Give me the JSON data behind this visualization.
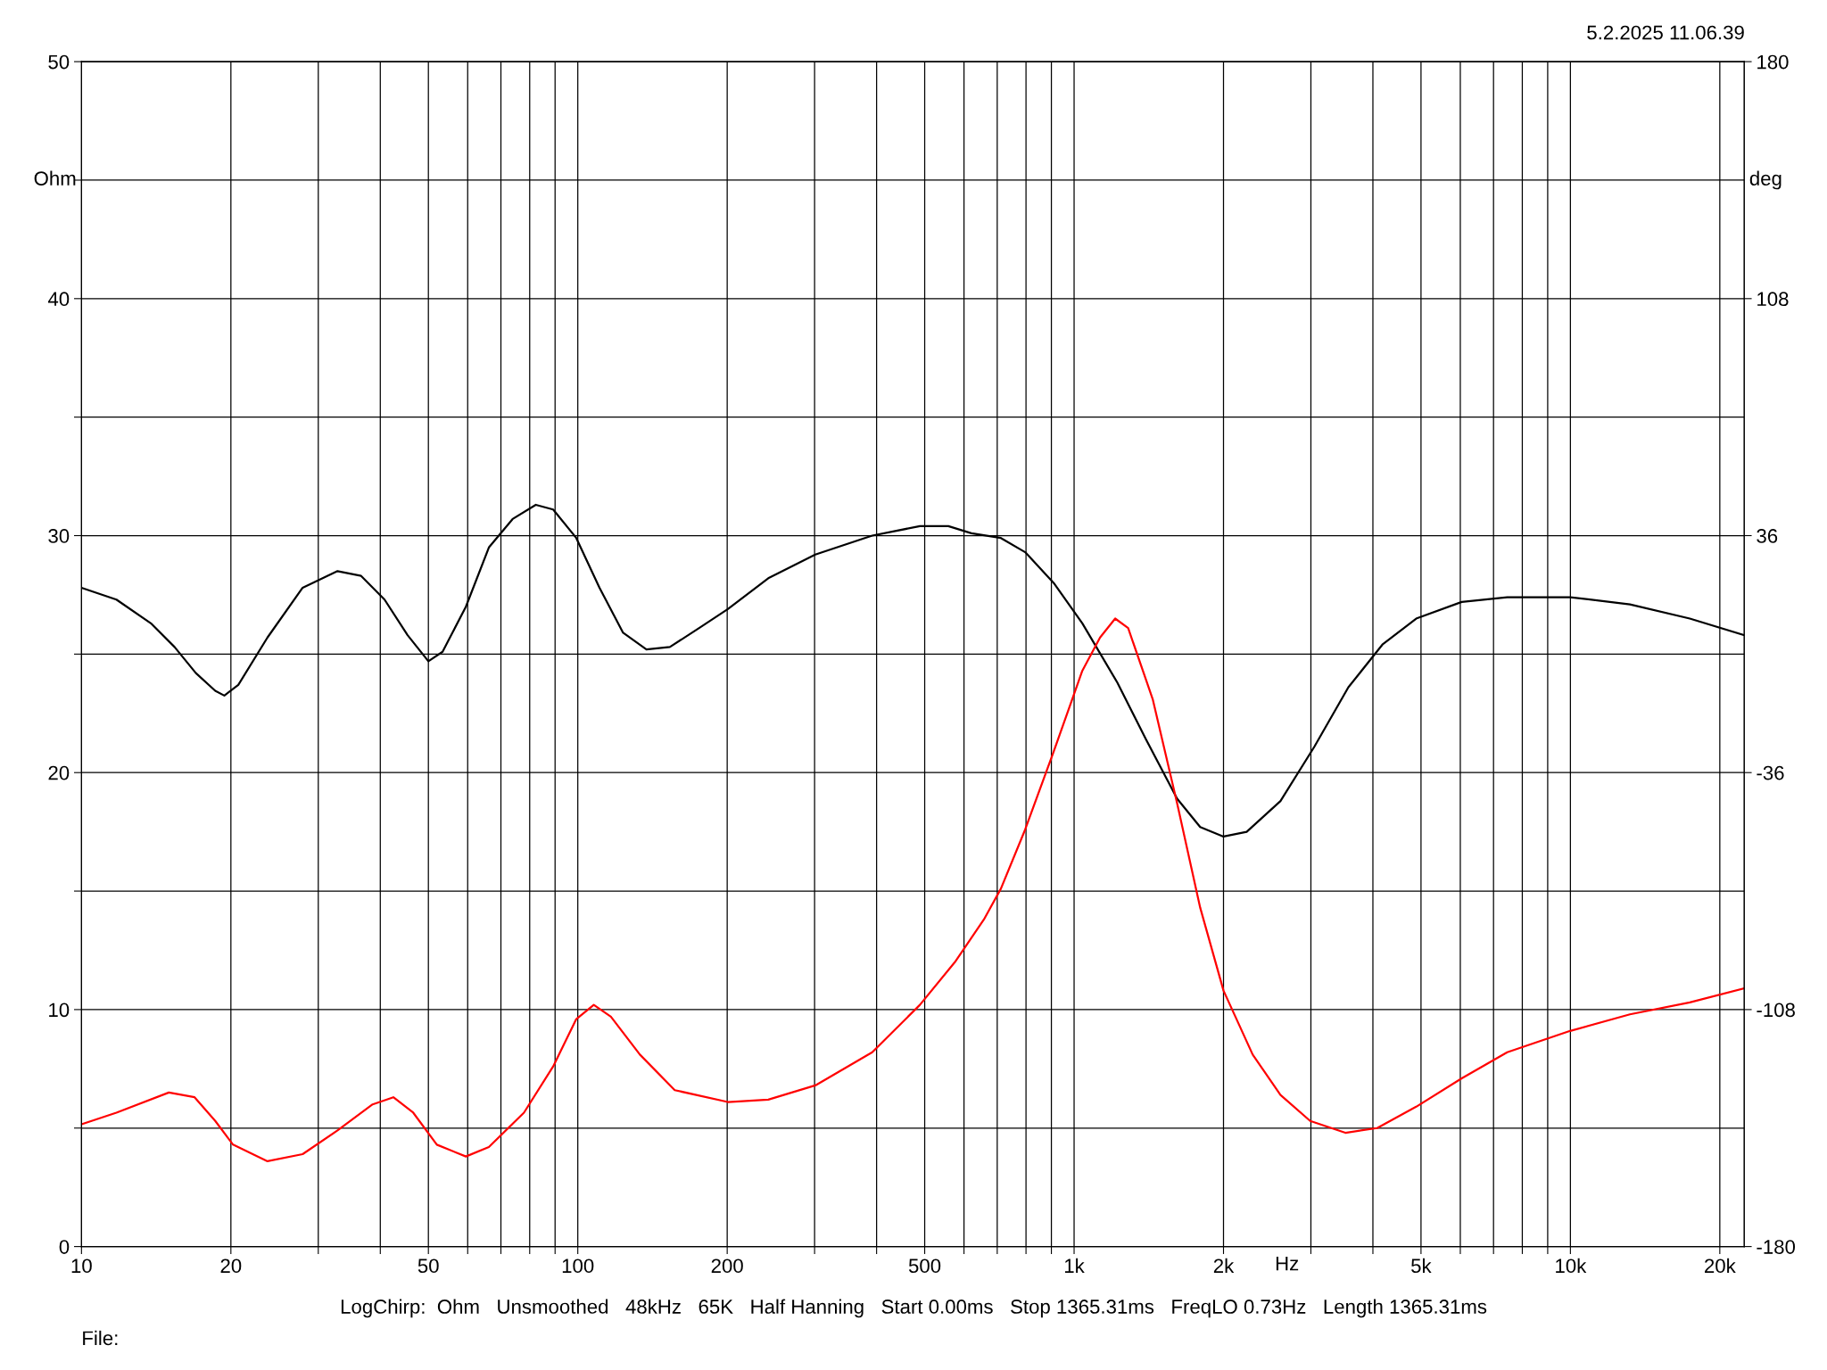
{
  "chart_data": {
    "type": "line",
    "xlabel": "Hz",
    "ylabel": "Ohm",
    "y2label": "deg",
    "log": "x",
    "grid": true,
    "marker": "none",
    "line_style": "solid",
    "xlim": [
      10,
      22400
    ],
    "ylim": [
      0,
      50
    ],
    "y2lim": [
      -180,
      180
    ],
    "xticks": [
      10,
      20,
      {
        "value": 30,
        "label": null
      },
      {
        "value": 40,
        "label": null
      },
      50,
      {
        "value": 60,
        "label": null
      },
      {
        "value": 70,
        "label": null
      },
      {
        "value": 80,
        "label": null
      },
      {
        "value": 90,
        "label": null
      },
      100,
      200,
      {
        "value": 300,
        "label": null
      },
      {
        "value": 400,
        "label": null
      },
      500,
      {
        "value": 600,
        "label": null
      },
      {
        "value": 700,
        "label": null
      },
      {
        "value": 800,
        "label": null
      },
      {
        "value": 900,
        "label": null
      },
      {
        "value": 1000,
        "label": "1k"
      },
      {
        "value": 2000,
        "label": "2k"
      },
      {
        "value": 3000,
        "label": null
      },
      {
        "value": 4000,
        "label": null
      },
      {
        "value": 5000,
        "label": "5k"
      },
      {
        "value": 6000,
        "label": null
      },
      {
        "value": 7000,
        "label": null
      },
      {
        "value": 8000,
        "label": null
      },
      {
        "value": 9000,
        "label": null
      },
      {
        "value": 10000,
        "label": "10k"
      },
      {
        "value": 20000,
        "label": "20k"
      }
    ],
    "yticks": [
      0,
      {
        "value": 5,
        "label": null
      },
      10,
      {
        "value": 15,
        "label": null
      },
      20,
      {
        "value": 25,
        "label": null
      },
      30,
      {
        "value": 35,
        "label": null
      },
      40,
      {
        "value": 45,
        "label": null
      },
      50
    ],
    "y2ticks": [
      -180,
      -108,
      -36,
      36,
      108,
      180
    ],
    "series": [
      {
        "color": "#000000",
        "x": [
          10,
          11.76,
          13.8,
          15.4,
          17.0,
          18.6,
          19.4,
          20.7,
          23.7,
          27.9,
          32.8,
          36.6,
          40.8,
          45.4,
          50.0,
          53.4,
          59.5,
          66.2,
          73.9,
          82.3,
          89.2,
          99.3,
          110.6,
          123.4,
          137.5,
          153.3,
          175.6,
          200.6,
          242,
          301,
          392,
          489,
          558,
          621,
          712,
          797,
          910,
          1039,
          1222,
          1396,
          1613,
          1795,
          2000,
          2227,
          2605,
          3050,
          3570,
          4180,
          4890,
          6040,
          7460,
          9990,
          13180,
          17400,
          22400
        ],
        "values": [
          27.8,
          27.3,
          26.3,
          25.3,
          24.2,
          23.45,
          23.25,
          23.7,
          25.7,
          27.8,
          28.5,
          28.3,
          27.3,
          25.8,
          24.7,
          25.1,
          27.0,
          29.5,
          30.7,
          31.3,
          31.1,
          29.9,
          27.8,
          25.9,
          25.2,
          25.3,
          26.1,
          26.9,
          28.2,
          29.2,
          30.0,
          30.4,
          30.4,
          30.1,
          29.9,
          29.3,
          28.0,
          26.3,
          23.8,
          21.4,
          18.9,
          17.7,
          17.3,
          17.5,
          18.8,
          21.1,
          23.6,
          25.4,
          26.5,
          27.2,
          27.4,
          27.4,
          27.1,
          26.5,
          25.8
        ]
      },
      {
        "color": "#ff0000",
        "x": [
          10,
          11.76,
          15.0,
          16.9,
          18.6,
          20.2,
          23.7,
          27.9,
          32.8,
          38.6,
          42.5,
          46.6,
          52.0,
          59.5,
          66.2,
          77.9,
          89.2,
          99.3,
          107.7,
          116.6,
          133.4,
          156.8,
          200.6,
          242,
          301,
          392,
          489,
          575,
          658,
          712,
          797,
          910,
          1039,
          1128,
          1210,
          1285,
          1440,
          1613,
          1795,
          2000,
          2290,
          2605,
          2990,
          3520,
          4080,
          4890,
          6040,
          7460,
          9990,
          13180,
          17400,
          22400
        ],
        "values": [
          5.16,
          5.65,
          6.5,
          6.3,
          5.3,
          4.3,
          3.6,
          3.9,
          4.9,
          6.0,
          6.3,
          5.65,
          4.3,
          3.8,
          4.2,
          5.65,
          7.6,
          9.6,
          10.2,
          9.7,
          8.1,
          6.6,
          6.1,
          6.2,
          6.8,
          8.2,
          10.2,
          12.0,
          13.8,
          15.1,
          17.6,
          20.9,
          24.3,
          25.7,
          26.5,
          26.1,
          23.1,
          18.7,
          14.3,
          10.8,
          8.1,
          6.4,
          5.3,
          4.8,
          5.0,
          5.9,
          7.1,
          8.2,
          9.1,
          9.8,
          10.3,
          10.9
        ]
      }
    ],
    "annotations": [
      "5.2.2025 11.06.39",
      "LogChirp:  Ohm   Unsmoothed   48kHz   65K   Half Hanning   Start 0.00ms   Stop 1365.31ms   FreqLO 0.73Hz   Length 1365.31ms",
      "File:"
    ]
  }
}
